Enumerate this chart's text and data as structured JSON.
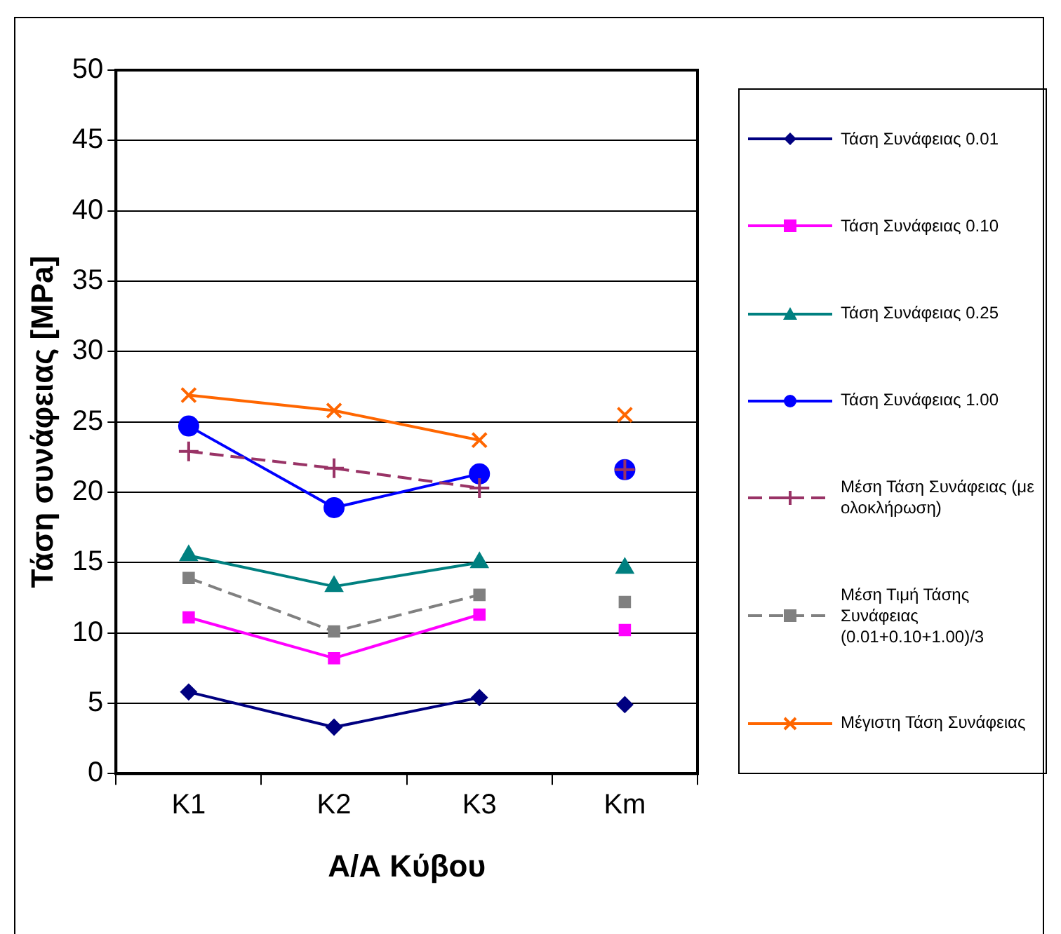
{
  "chart_data": {
    "type": "line",
    "xlabel": "Α/Α Κύβου",
    "ylabel": "Τάση συνάφειας [MPa]",
    "categories": [
      "K1",
      "K2",
      "K3",
      "Km"
    ],
    "ylim": [
      0,
      50
    ],
    "yticks": [
      0,
      5,
      10,
      15,
      20,
      25,
      30,
      35,
      40,
      45,
      50
    ],
    "grid": "y",
    "legend": "right",
    "series": [
      {
        "name": "Τάση Συνάφειας 0.01",
        "color": "#000080",
        "marker": "diamond",
        "values": [
          5.8,
          3.3,
          5.4,
          null
        ]
      },
      {
        "type": "scatter",
        "color": "#000080",
        "marker": "diamond",
        "values": [
          null,
          null,
          null,
          4.9
        ]
      },
      {
        "name": "Τάση Συνάφειας 0.10",
        "color": "#ff00ff",
        "marker": "square",
        "values": [
          11.1,
          8.2,
          11.3,
          null
        ]
      },
      {
        "type": "scatter",
        "color": "#ff00ff",
        "marker": "square",
        "values": [
          null,
          null,
          null,
          10.2
        ]
      },
      {
        "name": "Τάση Συνάφειας 0.25",
        "color": "#008080",
        "marker": "triangle",
        "values": [
          15.5,
          13.3,
          15.0,
          null
        ]
      },
      {
        "type": "scatter",
        "color": "#008080",
        "marker": "triangle",
        "values": [
          null,
          null,
          null,
          14.6
        ]
      },
      {
        "name": "Τάση Συνάφειας 1.00",
        "color": "#0000ff",
        "marker": "circle",
        "values": [
          24.7,
          18.9,
          21.3,
          null
        ]
      },
      {
        "type": "scatter",
        "color": "#0000ff",
        "marker": "circle",
        "values": [
          null,
          null,
          null,
          21.6
        ]
      },
      {
        "name": "Μέση Τάση Συνάφειας (με ολοκλήρωση)",
        "color": "#993366",
        "marker": "cross",
        "line_style": "dashed",
        "values": [
          22.9,
          21.7,
          20.3,
          null
        ]
      },
      {
        "type": "scatter",
        "color": "#993366",
        "marker": "cross",
        "values": [
          null,
          null,
          null,
          21.6
        ]
      },
      {
        "name": "Μέση Τιμή Τάσης Συνάφειας (0.01+0.10+1.00)/3",
        "color": "#808080",
        "marker": "square",
        "line_style": "dashed",
        "values": [
          13.9,
          10.1,
          12.7,
          null
        ]
      },
      {
        "type": "scatter",
        "color": "#808080",
        "marker": "square",
        "values": [
          null,
          null,
          null,
          12.2
        ]
      },
      {
        "name": "Μέγιστη Τάση Συνάφειας",
        "color": "#ff6600",
        "marker": "x",
        "values": [
          26.9,
          25.8,
          23.7,
          null
        ]
      },
      {
        "type": "scatter",
        "color": "#ff6600",
        "marker": "x",
        "values": [
          null,
          null,
          null,
          25.5
        ]
      }
    ]
  }
}
